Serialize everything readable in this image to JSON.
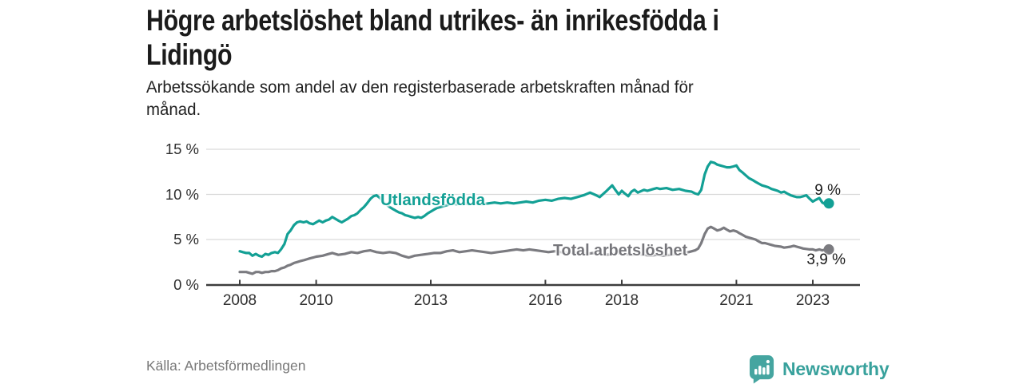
{
  "header": {
    "title_lines": [
      "Högre arbetslöshet bland utrikes- än inrikesfödda i",
      "Lidingö"
    ],
    "subtitle_lines": [
      "Arbetssökande som andel av den registerbaserade arbetskraften månad för",
      "månad."
    ]
  },
  "chart_data": {
    "type": "line",
    "title": "Högre arbetslöshet bland utrikes- än inrikesfödda i Lidingö",
    "subtitle": "Arbetssökande som andel av den registerbaserade arbetskraften månad för månad.",
    "xlabel": "",
    "ylabel": "",
    "grid": true,
    "legend_position": "inline-on-lines",
    "grid_color": "#d9d9d9",
    "axis_color": "#3d3d3d",
    "y_axis": {
      "range": [
        0,
        15
      ],
      "unit": "%",
      "ticks": [
        {
          "value": 0,
          "label": "0 %"
        },
        {
          "value": 5,
          "label": "5 %"
        },
        {
          "value": 10,
          "label": "10 %"
        },
        {
          "value": 15,
          "label": "15 %"
        }
      ]
    },
    "x_axis": {
      "range": [
        2008,
        2023.6
      ],
      "ticks": [
        {
          "value": 2008,
          "label": "2008"
        },
        {
          "value": 2010,
          "label": "2010"
        },
        {
          "value": 2013,
          "label": "2013"
        },
        {
          "value": 2016,
          "label": "2016"
        },
        {
          "value": 2018,
          "label": "2018"
        },
        {
          "value": 2021,
          "label": "2021"
        },
        {
          "value": 2023,
          "label": "2023"
        }
      ]
    },
    "series": [
      {
        "name": "Utlandsfödda",
        "label": "Utlandsfödda",
        "color": "#13a095",
        "end_label": "9 %",
        "end_value": 9.0,
        "points": [
          [
            2008.0,
            3.7
          ],
          [
            2008.08,
            3.6
          ],
          [
            2008.17,
            3.5
          ],
          [
            2008.25,
            3.5
          ],
          [
            2008.33,
            3.2
          ],
          [
            2008.42,
            3.4
          ],
          [
            2008.5,
            3.2
          ],
          [
            2008.58,
            3.1
          ],
          [
            2008.67,
            3.4
          ],
          [
            2008.75,
            3.3
          ],
          [
            2008.83,
            3.5
          ],
          [
            2008.92,
            3.6
          ],
          [
            2009.0,
            3.5
          ],
          [
            2009.08,
            3.9
          ],
          [
            2009.17,
            4.5
          ],
          [
            2009.25,
            5.6
          ],
          [
            2009.33,
            6.0
          ],
          [
            2009.42,
            6.6
          ],
          [
            2009.5,
            6.9
          ],
          [
            2009.58,
            7.0
          ],
          [
            2009.67,
            6.9
          ],
          [
            2009.75,
            7.0
          ],
          [
            2009.83,
            6.8
          ],
          [
            2009.92,
            6.7
          ],
          [
            2010.0,
            6.9
          ],
          [
            2010.08,
            7.1
          ],
          [
            2010.17,
            6.9
          ],
          [
            2010.25,
            7.1
          ],
          [
            2010.33,
            7.2
          ],
          [
            2010.42,
            7.5
          ],
          [
            2010.5,
            7.3
          ],
          [
            2010.58,
            7.1
          ],
          [
            2010.67,
            6.9
          ],
          [
            2010.75,
            7.1
          ],
          [
            2010.83,
            7.3
          ],
          [
            2010.92,
            7.6
          ],
          [
            2011.0,
            7.7
          ],
          [
            2011.08,
            7.9
          ],
          [
            2011.17,
            8.3
          ],
          [
            2011.25,
            8.6
          ],
          [
            2011.33,
            9.0
          ],
          [
            2011.42,
            9.5
          ],
          [
            2011.5,
            9.8
          ],
          [
            2011.58,
            9.9
          ],
          [
            2011.67,
            9.6
          ],
          [
            2011.75,
            9.2
          ],
          [
            2011.83,
            8.9
          ],
          [
            2011.92,
            8.6
          ],
          [
            2012.0,
            8.4
          ],
          [
            2012.08,
            8.2
          ],
          [
            2012.17,
            8.0
          ],
          [
            2012.25,
            7.9
          ],
          [
            2012.33,
            7.7
          ],
          [
            2012.42,
            7.6
          ],
          [
            2012.5,
            7.5
          ],
          [
            2012.58,
            7.4
          ],
          [
            2012.67,
            7.5
          ],
          [
            2012.75,
            7.4
          ],
          [
            2012.83,
            7.6
          ],
          [
            2012.92,
            7.9
          ],
          [
            2013.0,
            8.1
          ],
          [
            2013.08,
            8.3
          ],
          [
            2013.17,
            8.5
          ],
          [
            2013.25,
            8.6
          ],
          [
            2013.33,
            8.7
          ],
          [
            2013.42,
            8.8
          ],
          [
            2013.5,
            8.9
          ],
          [
            2013.58,
            9.0
          ],
          [
            2013.67,
            8.9
          ],
          [
            2013.75,
            9.0
          ],
          [
            2013.83,
            8.9
          ],
          [
            2013.92,
            9.0
          ],
          [
            2014.0,
            8.9
          ],
          [
            2014.17,
            9.0
          ],
          [
            2014.33,
            8.9
          ],
          [
            2014.5,
            9.0
          ],
          [
            2014.67,
            9.1
          ],
          [
            2014.83,
            9.0
          ],
          [
            2015.0,
            9.1
          ],
          [
            2015.17,
            9.0
          ],
          [
            2015.33,
            9.1
          ],
          [
            2015.5,
            9.2
          ],
          [
            2015.67,
            9.1
          ],
          [
            2015.83,
            9.3
          ],
          [
            2016.0,
            9.4
          ],
          [
            2016.17,
            9.3
          ],
          [
            2016.33,
            9.5
          ],
          [
            2016.5,
            9.6
          ],
          [
            2016.67,
            9.5
          ],
          [
            2016.83,
            9.7
          ],
          [
            2017.0,
            9.9
          ],
          [
            2017.17,
            10.2
          ],
          [
            2017.33,
            9.9
          ],
          [
            2017.42,
            9.7
          ],
          [
            2017.58,
            10.3
          ],
          [
            2017.75,
            11.0
          ],
          [
            2017.83,
            10.5
          ],
          [
            2017.92,
            10.0
          ],
          [
            2018.0,
            10.4
          ],
          [
            2018.08,
            10.1
          ],
          [
            2018.17,
            9.8
          ],
          [
            2018.25,
            10.3
          ],
          [
            2018.33,
            10.5
          ],
          [
            2018.42,
            10.2
          ],
          [
            2018.58,
            10.5
          ],
          [
            2018.67,
            10.4
          ],
          [
            2018.83,
            10.6
          ],
          [
            2018.92,
            10.7
          ],
          [
            2019.0,
            10.6
          ],
          [
            2019.17,
            10.7
          ],
          [
            2019.33,
            10.5
          ],
          [
            2019.5,
            10.6
          ],
          [
            2019.67,
            10.4
          ],
          [
            2019.83,
            10.3
          ],
          [
            2019.92,
            10.1
          ],
          [
            2020.0,
            10.0
          ],
          [
            2020.08,
            10.5
          ],
          [
            2020.17,
            12.2
          ],
          [
            2020.25,
            13.1
          ],
          [
            2020.33,
            13.6
          ],
          [
            2020.42,
            13.5
          ],
          [
            2020.5,
            13.3
          ],
          [
            2020.58,
            13.2
          ],
          [
            2020.67,
            13.1
          ],
          [
            2020.75,
            13.0
          ],
          [
            2020.83,
            13.0
          ],
          [
            2020.92,
            13.1
          ],
          [
            2021.0,
            13.2
          ],
          [
            2021.08,
            12.7
          ],
          [
            2021.17,
            12.4
          ],
          [
            2021.25,
            12.1
          ],
          [
            2021.33,
            11.8
          ],
          [
            2021.42,
            11.6
          ],
          [
            2021.5,
            11.4
          ],
          [
            2021.58,
            11.2
          ],
          [
            2021.67,
            11.0
          ],
          [
            2021.75,
            10.9
          ],
          [
            2021.83,
            10.8
          ],
          [
            2021.92,
            10.6
          ],
          [
            2022.0,
            10.5
          ],
          [
            2022.08,
            10.4
          ],
          [
            2022.17,
            10.2
          ],
          [
            2022.25,
            10.3
          ],
          [
            2022.33,
            10.1
          ],
          [
            2022.42,
            9.9
          ],
          [
            2022.5,
            9.8
          ],
          [
            2022.58,
            9.7
          ],
          [
            2022.67,
            9.7
          ],
          [
            2022.75,
            9.8
          ],
          [
            2022.83,
            9.9
          ],
          [
            2022.92,
            9.5
          ],
          [
            2023.0,
            9.2
          ],
          [
            2023.08,
            9.4
          ],
          [
            2023.17,
            9.6
          ],
          [
            2023.25,
            9.1
          ],
          [
            2023.33,
            8.9
          ],
          [
            2023.42,
            9.0
          ]
        ]
      },
      {
        "name": "Total arbetslöshet",
        "label": "Total arbetslöshet",
        "color": "#7b7b80",
        "end_label": "3,9 %",
        "end_value": 3.9,
        "points": [
          [
            2008.0,
            1.4
          ],
          [
            2008.08,
            1.4
          ],
          [
            2008.17,
            1.4
          ],
          [
            2008.25,
            1.3
          ],
          [
            2008.33,
            1.2
          ],
          [
            2008.42,
            1.4
          ],
          [
            2008.5,
            1.4
          ],
          [
            2008.58,
            1.3
          ],
          [
            2008.67,
            1.4
          ],
          [
            2008.75,
            1.4
          ],
          [
            2008.83,
            1.5
          ],
          [
            2008.92,
            1.5
          ],
          [
            2009.0,
            1.6
          ],
          [
            2009.08,
            1.8
          ],
          [
            2009.17,
            1.9
          ],
          [
            2009.25,
            2.1
          ],
          [
            2009.33,
            2.2
          ],
          [
            2009.42,
            2.4
          ],
          [
            2009.5,
            2.5
          ],
          [
            2009.58,
            2.6
          ],
          [
            2009.67,
            2.7
          ],
          [
            2009.75,
            2.8
          ],
          [
            2009.83,
            2.9
          ],
          [
            2009.92,
            3.0
          ],
          [
            2010.0,
            3.1
          ],
          [
            2010.17,
            3.2
          ],
          [
            2010.33,
            3.4
          ],
          [
            2010.42,
            3.5
          ],
          [
            2010.58,
            3.3
          ],
          [
            2010.75,
            3.4
          ],
          [
            2010.92,
            3.6
          ],
          [
            2011.08,
            3.5
          ],
          [
            2011.25,
            3.7
          ],
          [
            2011.42,
            3.8
          ],
          [
            2011.58,
            3.6
          ],
          [
            2011.75,
            3.5
          ],
          [
            2011.92,
            3.6
          ],
          [
            2012.08,
            3.5
          ],
          [
            2012.25,
            3.2
          ],
          [
            2012.42,
            3.0
          ],
          [
            2012.58,
            3.2
          ],
          [
            2012.75,
            3.3
          ],
          [
            2012.92,
            3.4
          ],
          [
            2013.08,
            3.5
          ],
          [
            2013.25,
            3.5
          ],
          [
            2013.42,
            3.7
          ],
          [
            2013.58,
            3.8
          ],
          [
            2013.75,
            3.6
          ],
          [
            2013.92,
            3.7
          ],
          [
            2014.08,
            3.8
          ],
          [
            2014.25,
            3.7
          ],
          [
            2014.42,
            3.6
          ],
          [
            2014.58,
            3.5
          ],
          [
            2014.75,
            3.6
          ],
          [
            2014.92,
            3.7
          ],
          [
            2015.08,
            3.8
          ],
          [
            2015.25,
            3.9
          ],
          [
            2015.42,
            3.8
          ],
          [
            2015.58,
            3.9
          ],
          [
            2015.75,
            3.8
          ],
          [
            2015.92,
            3.7
          ],
          [
            2016.08,
            3.6
          ],
          [
            2016.25,
            3.7
          ],
          [
            2016.42,
            3.6
          ],
          [
            2016.58,
            3.5
          ],
          [
            2016.75,
            3.6
          ],
          [
            2016.92,
            3.5
          ],
          [
            2017.08,
            3.4
          ],
          [
            2017.25,
            3.5
          ],
          [
            2017.42,
            3.4
          ],
          [
            2017.58,
            3.3
          ],
          [
            2017.75,
            3.4
          ],
          [
            2017.92,
            3.5
          ],
          [
            2018.08,
            3.4
          ],
          [
            2018.25,
            3.3
          ],
          [
            2018.42,
            3.4
          ],
          [
            2018.58,
            3.3
          ],
          [
            2018.75,
            3.2
          ],
          [
            2018.92,
            3.3
          ],
          [
            2019.08,
            3.2
          ],
          [
            2019.25,
            3.3
          ],
          [
            2019.42,
            3.4
          ],
          [
            2019.58,
            3.5
          ],
          [
            2019.75,
            3.6
          ],
          [
            2019.92,
            3.8
          ],
          [
            2020.0,
            4.0
          ],
          [
            2020.08,
            4.6
          ],
          [
            2020.17,
            5.6
          ],
          [
            2020.25,
            6.2
          ],
          [
            2020.33,
            6.4
          ],
          [
            2020.42,
            6.2
          ],
          [
            2020.5,
            6.0
          ],
          [
            2020.58,
            6.1
          ],
          [
            2020.67,
            6.3
          ],
          [
            2020.75,
            6.1
          ],
          [
            2020.83,
            5.9
          ],
          [
            2020.92,
            6.0
          ],
          [
            2021.0,
            5.9
          ],
          [
            2021.08,
            5.7
          ],
          [
            2021.17,
            5.5
          ],
          [
            2021.25,
            5.3
          ],
          [
            2021.33,
            5.2
          ],
          [
            2021.42,
            5.1
          ],
          [
            2021.5,
            5.0
          ],
          [
            2021.58,
            4.8
          ],
          [
            2021.67,
            4.6
          ],
          [
            2021.75,
            4.6
          ],
          [
            2021.83,
            4.5
          ],
          [
            2021.92,
            4.4
          ],
          [
            2022.0,
            4.3
          ],
          [
            2022.17,
            4.2
          ],
          [
            2022.25,
            4.1
          ],
          [
            2022.42,
            4.2
          ],
          [
            2022.5,
            4.3
          ],
          [
            2022.58,
            4.2
          ],
          [
            2022.67,
            4.1
          ],
          [
            2022.75,
            4.0
          ],
          [
            2022.92,
            3.9
          ],
          [
            2023.0,
            3.9
          ],
          [
            2023.08,
            3.8
          ],
          [
            2023.17,
            3.9
          ],
          [
            2023.25,
            3.8
          ],
          [
            2023.33,
            3.9
          ],
          [
            2023.42,
            3.9
          ]
        ]
      }
    ]
  },
  "footer": {
    "source": "Källa: Arbetsförmedlingen",
    "brand": "Newsworthy",
    "brand_color": "#45a5a0"
  }
}
